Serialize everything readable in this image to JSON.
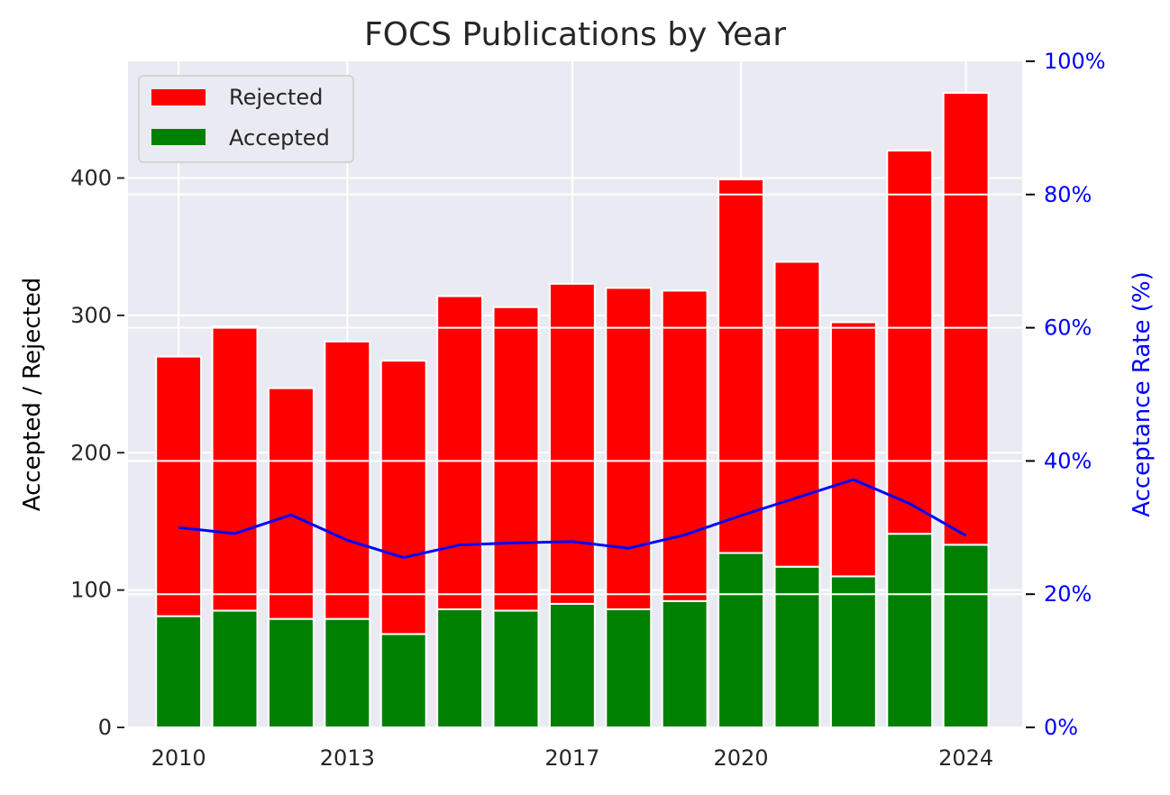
{
  "chart_data": {
    "type": "bar",
    "title": "FOCS Publications by Year",
    "stacked": true,
    "x": [
      2010,
      2011,
      2012,
      2013,
      2014,
      2015,
      2016,
      2017,
      2018,
      2019,
      2020,
      2021,
      2022,
      2023,
      2024
    ],
    "xticks": [
      "2010",
      "2013",
      "2017",
      "2020",
      "2024"
    ],
    "ylabel": "Accepted / Rejected",
    "ylim": [
      0,
      485
    ],
    "yticks": [
      0,
      100,
      200,
      300,
      400
    ],
    "y2label": "Acceptance Rate (%)",
    "y2lim": [
      0,
      100
    ],
    "y2ticks": [
      "0%",
      "20%",
      "40%",
      "60%",
      "80%",
      "100%"
    ],
    "grid": true,
    "legend_position": "top-left",
    "series": [
      {
        "name": "Accepted",
        "kind": "bar",
        "color": "#008000",
        "values": [
          81,
          85,
          79,
          79,
          68,
          86,
          85,
          90,
          86,
          92,
          127,
          117,
          110,
          141,
          133
        ]
      },
      {
        "name": "Rejected",
        "kind": "bar",
        "color": "#ff0000",
        "values": [
          189,
          207,
          168,
          202,
          199,
          228,
          221,
          233,
          234,
          226,
          272,
          222,
          185,
          279,
          329
        ]
      },
      {
        "kind": "line",
        "axis": "right",
        "color": "#0000ff",
        "values": [
          30.0,
          29.1,
          31.9,
          28.1,
          25.5,
          27.4,
          27.7,
          27.9,
          26.9,
          28.9,
          31.8,
          34.5,
          37.2,
          33.6,
          28.8
        ]
      }
    ]
  }
}
